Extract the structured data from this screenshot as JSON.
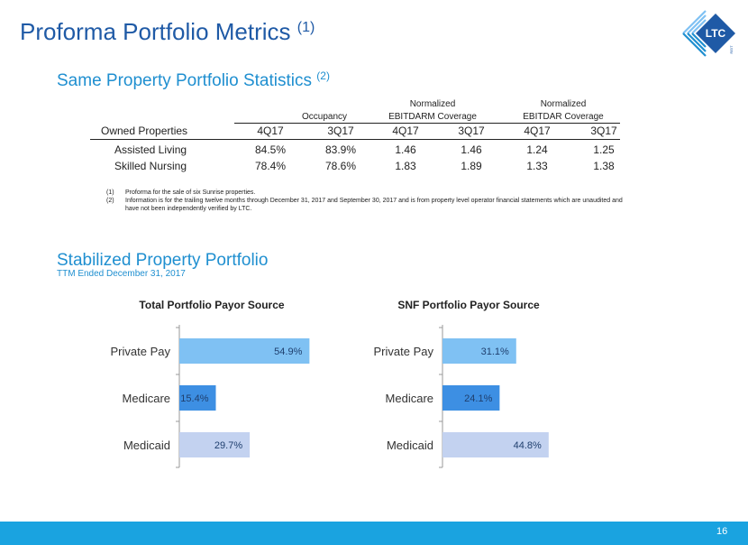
{
  "header": {
    "title": "Proforma Portfolio Metrics",
    "title_note": "(1)",
    "logo_text": "LTC",
    "logo_subtext": "REIT"
  },
  "stats": {
    "title": "Same Property Portfolio Statistics",
    "title_note": "(2)",
    "groups": [
      {
        "top": "",
        "bottom": "Occupancy"
      },
      {
        "top": "Normalized",
        "bottom": "EBITDARM Coverage"
      },
      {
        "top": "Normalized",
        "bottom": "EBITDAR Coverage"
      }
    ],
    "columns": [
      "Owned Properties",
      "4Q17",
      "3Q17",
      "4Q17",
      "3Q17",
      "4Q17",
      "3Q17"
    ],
    "rows": [
      [
        "Assisted Living",
        "84.5%",
        "83.9%",
        "1.46",
        "1.46",
        "1.24",
        "1.25"
      ],
      [
        "Skilled Nursing",
        "78.4%",
        "78.6%",
        "1.83",
        "1.89",
        "1.33",
        "1.38"
      ]
    ],
    "footnotes": [
      {
        "num": "(1)",
        "text": "Proforma for the sale of six Sunrise properties."
      },
      {
        "num": "(2)",
        "text": "Information is for the trailing twelve months through December 31, 2017 and September 30, 2017 and is from property level operator financial statements which are unaudited and have not been independently verified by LTC."
      }
    ]
  },
  "stabilized": {
    "title": "Stabilized Property Portfolio",
    "subtitle": "TTM Ended December 31, 2017"
  },
  "chart_data": [
    {
      "type": "bar",
      "orientation": "horizontal",
      "title": "Total Portfolio Payor Source",
      "categories": [
        "Private Pay",
        "Medicare",
        "Medicaid"
      ],
      "values": [
        54.9,
        15.4,
        29.7
      ],
      "labels": [
        "54.9%",
        "15.4%",
        "29.7%"
      ],
      "colors": [
        "#7fc1f3",
        "#3d8fe3",
        "#c3d2f0"
      ],
      "xlim": [
        0,
        100
      ]
    },
    {
      "type": "bar",
      "orientation": "horizontal",
      "title": "SNF Portfolio Payor Source",
      "categories": [
        "Private Pay",
        "Medicare",
        "Medicaid"
      ],
      "values": [
        31.1,
        24.1,
        44.8
      ],
      "labels": [
        "31.1%",
        "24.1%",
        "44.8%"
      ],
      "colors": [
        "#7fc1f3",
        "#3d8fe3",
        "#c3d2f0"
      ],
      "xlim": [
        0,
        100
      ]
    }
  ],
  "footer": {
    "page_number": "16",
    "bar_color": "#1aa3e0"
  }
}
